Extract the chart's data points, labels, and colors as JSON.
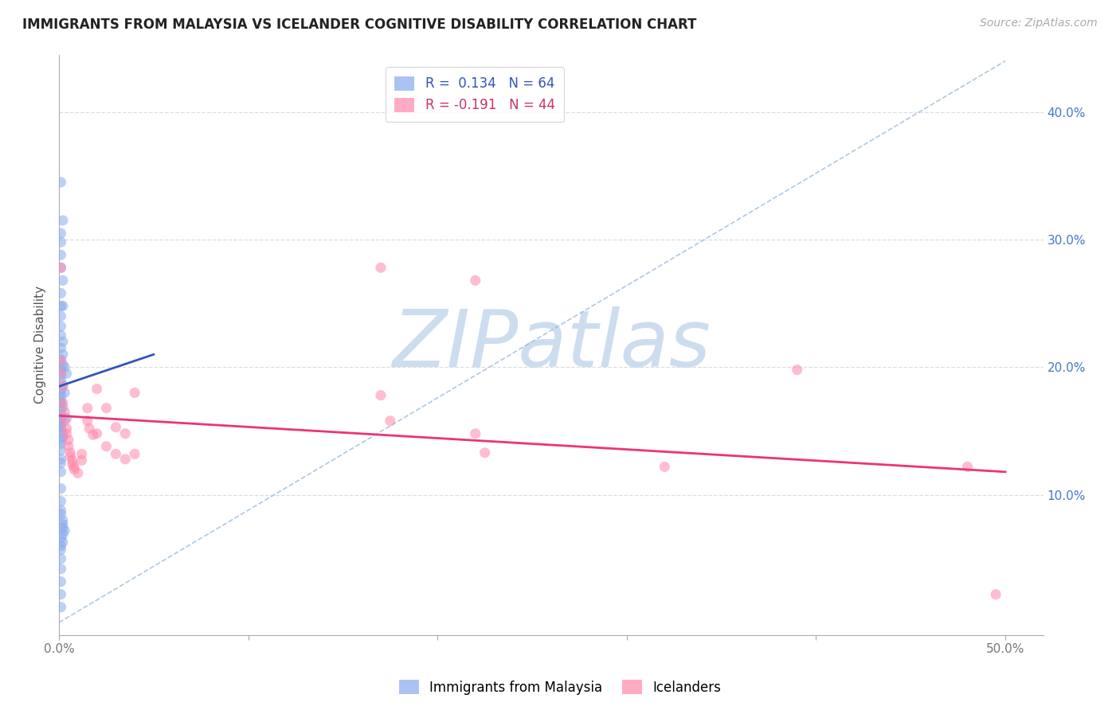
{
  "title": "IMMIGRANTS FROM MALAYSIA VS ICELANDER COGNITIVE DISABILITY CORRELATION CHART",
  "source": "Source: ZipAtlas.com",
  "ylabel": "Cognitive Disability",
  "x_tick_labels": [
    "0.0%",
    "50.0%"
  ],
  "x_tick_values": [
    0.0,
    0.5
  ],
  "y_tick_labels_right": [
    "10.0%",
    "20.0%",
    "30.0%",
    "40.0%"
  ],
  "y_tick_values": [
    0.1,
    0.2,
    0.3,
    0.4
  ],
  "xlim": [
    0.0,
    0.52
  ],
  "ylim": [
    -0.01,
    0.445
  ],
  "legend_label_blue": "Immigrants from Malaysia",
  "legend_label_pink": "Icelanders",
  "legend_r_blue": "R =  0.134",
  "legend_n_blue": "N = 64",
  "legend_r_pink": "R = -0.191",
  "legend_n_pink": "N = 44",
  "blue_color": "#88aaee",
  "pink_color": "#ff88aa",
  "blue_scatter": [
    [
      0.001,
      0.345
    ],
    [
      0.002,
      0.315
    ],
    [
      0.001,
      0.305
    ],
    [
      0.001,
      0.298
    ],
    [
      0.001,
      0.288
    ],
    [
      0.001,
      0.278
    ],
    [
      0.002,
      0.268
    ],
    [
      0.001,
      0.258
    ],
    [
      0.002,
      0.248
    ],
    [
      0.001,
      0.248
    ],
    [
      0.001,
      0.24
    ],
    [
      0.001,
      0.232
    ],
    [
      0.001,
      0.225
    ],
    [
      0.002,
      0.22
    ],
    [
      0.001,
      0.215
    ],
    [
      0.002,
      0.21
    ],
    [
      0.001,
      0.206
    ],
    [
      0.002,
      0.202
    ],
    [
      0.001,
      0.198
    ],
    [
      0.001,
      0.194
    ],
    [
      0.001,
      0.19
    ],
    [
      0.002,
      0.186
    ],
    [
      0.001,
      0.182
    ],
    [
      0.001,
      0.178
    ],
    [
      0.001,
      0.174
    ],
    [
      0.001,
      0.172
    ],
    [
      0.002,
      0.169
    ],
    [
      0.001,
      0.166
    ],
    [
      0.001,
      0.163
    ],
    [
      0.001,
      0.16
    ],
    [
      0.001,
      0.158
    ],
    [
      0.001,
      0.155
    ],
    [
      0.001,
      0.153
    ],
    [
      0.001,
      0.15
    ],
    [
      0.002,
      0.148
    ],
    [
      0.002,
      0.145
    ],
    [
      0.001,
      0.143
    ],
    [
      0.001,
      0.14
    ],
    [
      0.003,
      0.2
    ],
    [
      0.004,
      0.195
    ],
    [
      0.003,
      0.18
    ],
    [
      0.004,
      0.16
    ],
    [
      0.001,
      0.128
    ],
    [
      0.001,
      0.118
    ],
    [
      0.001,
      0.105
    ],
    [
      0.001,
      0.095
    ],
    [
      0.001,
      0.085
    ],
    [
      0.002,
      0.08
    ],
    [
      0.002,
      0.077
    ],
    [
      0.002,
      0.074
    ],
    [
      0.003,
      0.072
    ],
    [
      0.002,
      0.069
    ],
    [
      0.001,
      0.066
    ],
    [
      0.002,
      0.063
    ],
    [
      0.001,
      0.06
    ],
    [
      0.001,
      0.057
    ],
    [
      0.001,
      0.088
    ],
    [
      0.001,
      0.05
    ],
    [
      0.001,
      0.042
    ],
    [
      0.001,
      0.032
    ],
    [
      0.001,
      0.022
    ],
    [
      0.001,
      0.012
    ],
    [
      0.001,
      0.135
    ],
    [
      0.001,
      0.125
    ]
  ],
  "pink_scatter": [
    [
      0.001,
      0.278
    ],
    [
      0.001,
      0.205
    ],
    [
      0.001,
      0.195
    ],
    [
      0.002,
      0.185
    ],
    [
      0.002,
      0.172
    ],
    [
      0.003,
      0.165
    ],
    [
      0.003,
      0.158
    ],
    [
      0.004,
      0.152
    ],
    [
      0.004,
      0.148
    ],
    [
      0.005,
      0.143
    ],
    [
      0.005,
      0.138
    ],
    [
      0.006,
      0.133
    ],
    [
      0.006,
      0.13
    ],
    [
      0.007,
      0.127
    ],
    [
      0.007,
      0.124
    ],
    [
      0.008,
      0.122
    ],
    [
      0.008,
      0.12
    ],
    [
      0.01,
      0.117
    ],
    [
      0.012,
      0.132
    ],
    [
      0.012,
      0.127
    ],
    [
      0.015,
      0.168
    ],
    [
      0.015,
      0.158
    ],
    [
      0.016,
      0.152
    ],
    [
      0.018,
      0.147
    ],
    [
      0.02,
      0.183
    ],
    [
      0.02,
      0.148
    ],
    [
      0.025,
      0.168
    ],
    [
      0.025,
      0.138
    ],
    [
      0.03,
      0.153
    ],
    [
      0.03,
      0.132
    ],
    [
      0.035,
      0.148
    ],
    [
      0.035,
      0.128
    ],
    [
      0.04,
      0.18
    ],
    [
      0.04,
      0.132
    ],
    [
      0.17,
      0.278
    ],
    [
      0.22,
      0.268
    ],
    [
      0.17,
      0.178
    ],
    [
      0.175,
      0.158
    ],
    [
      0.22,
      0.148
    ],
    [
      0.225,
      0.133
    ],
    [
      0.32,
      0.122
    ],
    [
      0.39,
      0.198
    ],
    [
      0.48,
      0.122
    ],
    [
      0.495,
      0.022
    ]
  ],
  "blue_trendline_x": [
    0.0,
    0.05
  ],
  "blue_trendline_y": [
    0.185,
    0.21
  ],
  "pink_trendline_x": [
    0.0,
    0.5
  ],
  "pink_trendline_y": [
    0.162,
    0.118
  ],
  "ref_line_x": [
    0.0,
    0.5
  ],
  "ref_line_y": [
    0.0,
    0.44
  ],
  "watermark": "ZIPatlas",
  "watermark_color": "#ccddf0",
  "background_color": "#ffffff",
  "grid_color": "#dddddd"
}
